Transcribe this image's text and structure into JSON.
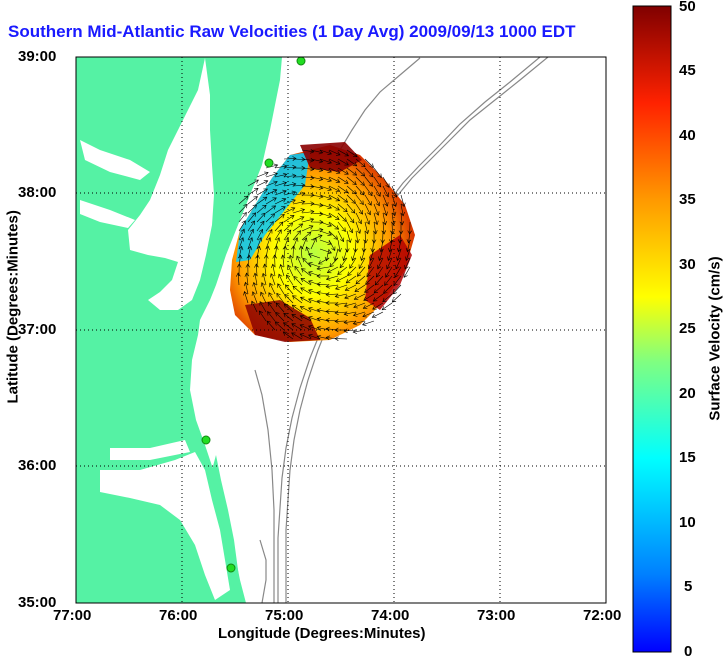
{
  "title": "Southern Mid-Atlantic Raw Velocities (1 Day Avg) 2009/09/13 1000 EDT",
  "chart_data": {
    "type": "map",
    "xlabel": "Longitude (Degrees:Minutes)",
    "ylabel": "Latitude (Degrees:Minutes)",
    "xlim": [
      -77.0,
      -72.0
    ],
    "ylim": [
      35.0,
      39.0
    ],
    "x_ticks": [
      "77:00",
      "76:00",
      "75:00",
      "74:00",
      "73:00",
      "72:00"
    ],
    "y_ticks": [
      "39:00",
      "38:00",
      "37:00",
      "36:00",
      "35:00"
    ],
    "grid": true,
    "colorbar": {
      "label": "Surface Velocity (cm/s)",
      "range": [
        0,
        50
      ],
      "ticks": [
        "50",
        "45",
        "40",
        "35",
        "30",
        "25",
        "20",
        "15",
        "10",
        "5",
        "0"
      ],
      "colormap": "jet"
    },
    "hf_radar_sites": [
      {
        "lon": -74.86,
        "lat": 38.95
      },
      {
        "lon": -75.17,
        "lat": 38.22
      },
      {
        "lon": -75.8,
        "lat": 36.19
      },
      {
        "lon": -75.54,
        "lat": 35.23
      }
    ]
  },
  "colors": {
    "land": "#55f2a4",
    "water": "#ffffff",
    "site_marker": "#22dd22",
    "bathymetry": "#888888",
    "title": "#1a1aff"
  }
}
